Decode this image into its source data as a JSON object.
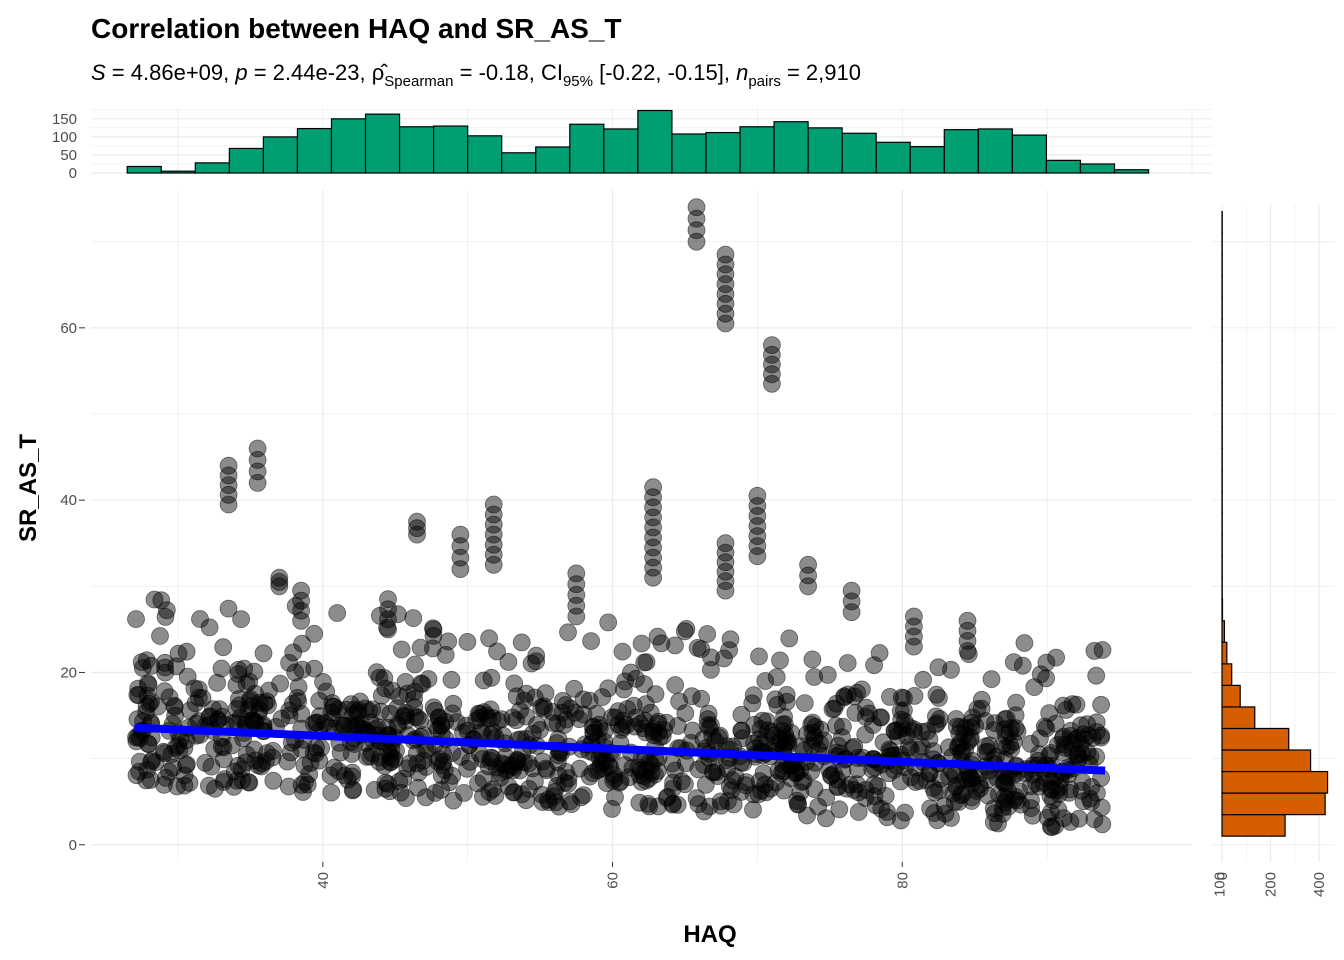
{
  "chart_data": {
    "type": "scatter",
    "title": "Correlation between HAQ and SR_AS_T",
    "subtitle": "S = 4.86e+09, p = 2.44e-23, ρ̂Spearman = -0.18, CI95% [-0.22, -0.15], npairs = 2,910",
    "subtitle_parts": {
      "s_label": "S",
      "s_value": " = 4.86e+09, ",
      "p_label": "p",
      "p_value": " = 2.44e-23, ",
      "rho": "ρ̂",
      "rho_sub": "Spearman",
      "rho_value": " = -0.18, CI",
      "ci_sub": "95%",
      "ci_value": " [-0.22, -0.15], ",
      "n_label": "n",
      "n_sub": "pairs",
      "n_value": " = 2,910"
    },
    "xlabel": "HAQ",
    "ylabel": "SR_AS_T",
    "xlim": [
      24,
      100
    ],
    "ylim": [
      -2,
      76
    ],
    "x_ticks": [
      "40",
      "60",
      "80"
    ],
    "y_ticks": [
      "0",
      "20",
      "40",
      "60"
    ],
    "grid": true,
    "point_color": "#000000",
    "regression": {
      "color": "#0000ff",
      "x": [
        27,
        94
      ],
      "y": [
        13.6,
        8.6
      ]
    },
    "top_histogram": {
      "color": "#009e73",
      "bin_start": 26.5,
      "bin_width": 2.35,
      "counts": [
        18,
        5,
        28,
        68,
        100,
        123,
        150,
        163,
        128,
        130,
        103,
        56,
        72,
        135,
        122,
        173,
        108,
        112,
        128,
        142,
        125,
        110,
        85,
        73,
        120,
        122,
        105,
        35,
        25,
        9
      ],
      "y_ticks": [
        "0",
        "50",
        "100",
        "150"
      ]
    },
    "right_histogram": {
      "color": "#d55e00",
      "bin_start": 1,
      "bin_width": 2.5,
      "counts": [
        260,
        425,
        435,
        365,
        275,
        135,
        75,
        40,
        20,
        10,
        2,
        1,
        1,
        1,
        1,
        1,
        1,
        1,
        1,
        1,
        1,
        1,
        1,
        1,
        1,
        1,
        1,
        1,
        1
      ],
      "x_ticks": [
        "100",
        "0",
        "200",
        "400"
      ]
    },
    "vertical_streaks": [
      {
        "x": 33.5,
        "y": [
          39.5,
          44
        ]
      },
      {
        "x": 35.5,
        "y": [
          42,
          46
        ]
      },
      {
        "x": 37,
        "y": [
          30,
          31
        ]
      },
      {
        "x": 38.5,
        "y": [
          26,
          29.5
        ]
      },
      {
        "x": 44.5,
        "y": [
          25,
          28.5
        ]
      },
      {
        "x": 46.5,
        "y": [
          36,
          37.5
        ]
      },
      {
        "x": 49.5,
        "y": [
          32,
          36
        ]
      },
      {
        "x": 51.8,
        "y": [
          32.5,
          39.5
        ]
      },
      {
        "x": 57.5,
        "y": [
          26.5,
          31.5
        ]
      },
      {
        "x": 62.8,
        "y": [
          31,
          41.5
        ]
      },
      {
        "x": 65.8,
        "y": [
          70,
          74
        ]
      },
      {
        "x": 67.8,
        "y": [
          60.5,
          68.5
        ]
      },
      {
        "x": 67.8,
        "y": [
          29.5,
          35
        ]
      },
      {
        "x": 70,
        "y": [
          33.5,
          40.5
        ]
      },
      {
        "x": 71,
        "y": [
          53.5,
          58
        ]
      },
      {
        "x": 73.5,
        "y": [
          30,
          32.5
        ]
      },
      {
        "x": 76.5,
        "y": [
          27,
          29.5
        ]
      },
      {
        "x": 80.8,
        "y": [
          23,
          26.5
        ]
      },
      {
        "x": 84.5,
        "y": [
          22.5,
          26
        ]
      }
    ]
  }
}
